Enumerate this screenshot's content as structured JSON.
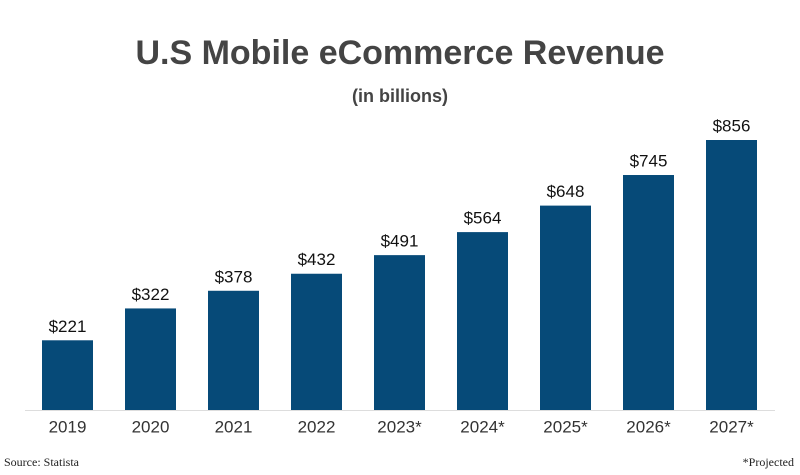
{
  "chart_data": {
    "type": "bar",
    "title": "U.S Mobile eCommerce Revenue",
    "subtitle": "(in billions)",
    "categories": [
      "2019",
      "2020",
      "2021",
      "2022",
      "2023*",
      "2024*",
      "2025*",
      "2026*",
      "2027*"
    ],
    "values": [
      221,
      322,
      378,
      432,
      491,
      564,
      648,
      745,
      856
    ],
    "value_labels": [
      "$221",
      "$322",
      "$378",
      "$432",
      "$491",
      "$564",
      "$648",
      "$745",
      "$856"
    ],
    "color": "#064a78",
    "source": "Source: Statista",
    "footnote": "*Projected"
  }
}
